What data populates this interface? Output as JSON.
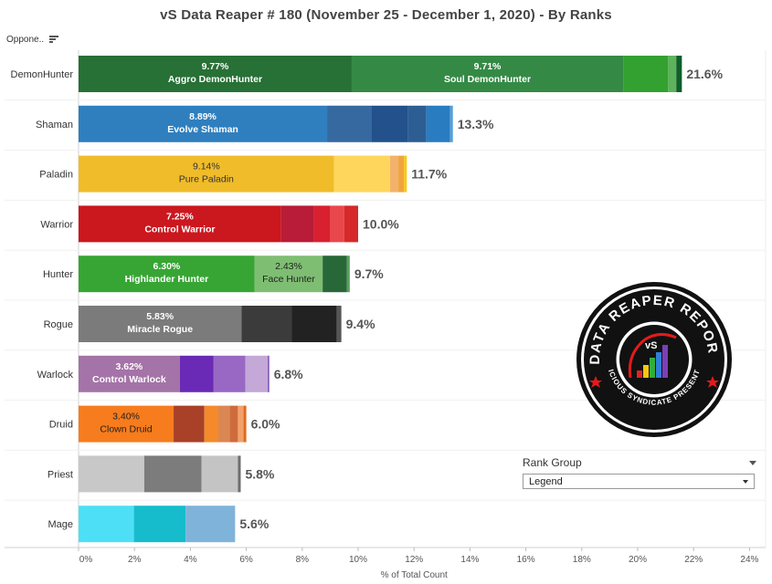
{
  "title": "vS Data Reaper #  180 (November 25 - December 1, 2020) - By Ranks",
  "sort_label": "Oppone..",
  "rank_group": {
    "label": "Rank Group",
    "selected": "Legend"
  },
  "logo": {
    "text_top": "DATA REAPER REPORT",
    "text_bottom": "VICIOUS SYNDICATE PRESENTS",
    "mark": "vS"
  },
  "chart_data": {
    "type": "bar",
    "orientation": "horizontal",
    "stacked": true,
    "xlabel": "% of Total Count",
    "xlim": [
      0,
      24
    ],
    "xticks": [
      "0%",
      "2%",
      "4%",
      "6%",
      "8%",
      "10%",
      "12%",
      "14%",
      "16%",
      "18%",
      "20%",
      "22%",
      "24%"
    ],
    "categories": [
      {
        "name": "DemonHunter",
        "total": 21.6,
        "total_label": "21.6%",
        "segments": [
          {
            "value": 9.77,
            "color": "#277036",
            "label": "Aggro DemonHunter",
            "value_label": "9.77%",
            "text_color": "#ffffff"
          },
          {
            "value": 9.71,
            "color": "#348a45",
            "label": "Soul DemonHunter",
            "value_label": "9.71%",
            "text_color": "#ffffff"
          },
          {
            "value": 1.6,
            "color": "#33a130"
          },
          {
            "value": 0.3,
            "color": "#5db35c"
          },
          {
            "value": 0.2,
            "color": "#0f5e2a"
          }
        ]
      },
      {
        "name": "Shaman",
        "total": 13.3,
        "total_label": "13.3%",
        "segments": [
          {
            "value": 8.89,
            "color": "#2f7fbf",
            "label": "Evolve Shaman",
            "value_label": "8.89%",
            "text_color": "#ffffff"
          },
          {
            "value": 1.6,
            "color": "#3569a0"
          },
          {
            "value": 1.3,
            "color": "#23518c"
          },
          {
            "value": 0.65,
            "color": "#2d5e93"
          },
          {
            "value": 0.85,
            "color": "#2a7cc1"
          },
          {
            "value": 0.1,
            "color": "#5aa0d6"
          }
        ]
      },
      {
        "name": "Paladin",
        "total": 11.7,
        "total_label": "11.7%",
        "segments": [
          {
            "value": 9.14,
            "color": "#f0bc2a",
            "label": "Pure Paladin",
            "value_label": "9.14%",
            "text_color": "#333333"
          },
          {
            "value": 2.0,
            "color": "#fdd65b"
          },
          {
            "value": 0.3,
            "color": "#f3b26b"
          },
          {
            "value": 0.2,
            "color": "#f2a43c"
          },
          {
            "value": 0.1,
            "color": "#f6c814"
          }
        ]
      },
      {
        "name": "Warrior",
        "total": 10.0,
        "total_label": "10.0%",
        "segments": [
          {
            "value": 7.25,
            "color": "#cb171e",
            "label": "Control Warrior",
            "value_label": "7.25%",
            "text_color": "#ffffff"
          },
          {
            "value": 1.15,
            "color": "#b81c38"
          },
          {
            "value": 0.6,
            "color": "#d92030"
          },
          {
            "value": 0.5,
            "color": "#e8474c"
          },
          {
            "value": 0.5,
            "color": "#d62929"
          }
        ]
      },
      {
        "name": "Hunter",
        "total": 9.7,
        "total_label": "9.7%",
        "segments": [
          {
            "value": 6.3,
            "color": "#37a534",
            "label": "Highlander Hunter",
            "value_label": "6.30%",
            "text_color": "#ffffff"
          },
          {
            "value": 2.43,
            "color": "#7ebe72",
            "label": "Face Hunter",
            "value_label": "2.43%",
            "text_color": "#222222"
          },
          {
            "value": 0.87,
            "color": "#286838"
          },
          {
            "value": 0.1,
            "color": "#5a9e60"
          }
        ]
      },
      {
        "name": "Rogue",
        "total": 9.4,
        "total_label": "9.4%",
        "segments": [
          {
            "value": 5.83,
            "color": "#7b7b7b",
            "label": "Miracle Rogue",
            "value_label": "5.83%",
            "text_color": "#ffffff"
          },
          {
            "value": 1.8,
            "color": "#3b3b3b"
          },
          {
            "value": 1.6,
            "color": "#222222"
          },
          {
            "value": 0.17,
            "color": "#555555"
          }
        ]
      },
      {
        "name": "Warlock",
        "total": 6.8,
        "total_label": "6.8%",
        "segments": [
          {
            "value": 3.62,
            "color": "#a473a7",
            "label": "Control Warlock",
            "value_label": "3.62%",
            "text_color": "#ffffff"
          },
          {
            "value": 1.2,
            "color": "#6a2ab5"
          },
          {
            "value": 1.15,
            "color": "#9868c4"
          },
          {
            "value": 0.8,
            "color": "#c3a8d8"
          },
          {
            "value": 0.05,
            "color": "#7a4ab0"
          }
        ]
      },
      {
        "name": "Druid",
        "total": 6.0,
        "total_label": "6.0%",
        "segments": [
          {
            "value": 3.4,
            "color": "#f77c1d",
            "label": "Clown Druid",
            "value_label": "3.40%",
            "text_color": "#222222"
          },
          {
            "value": 1.1,
            "color": "#a84128"
          },
          {
            "value": 0.5,
            "color": "#f58a2a"
          },
          {
            "value": 0.4,
            "color": "#da8753"
          },
          {
            "value": 0.3,
            "color": "#ce6b3c"
          },
          {
            "value": 0.2,
            "color": "#f3a16b"
          },
          {
            "value": 0.1,
            "color": "#e06a1f"
          }
        ]
      },
      {
        "name": "Priest",
        "total": 5.8,
        "total_label": "5.8%",
        "segments": [
          {
            "value": 2.35,
            "color": "#c8c8c8"
          },
          {
            "value": 2.05,
            "color": "#7c7c7c"
          },
          {
            "value": 1.3,
            "color": "#c4c4c4"
          },
          {
            "value": 0.1,
            "color": "#6e6e6e"
          }
        ]
      },
      {
        "name": "Mage",
        "total": 5.6,
        "total_label": "5.6%",
        "segments": [
          {
            "value": 1.98,
            "color": "#4ddff5"
          },
          {
            "value": 1.85,
            "color": "#17bccc"
          },
          {
            "value": 1.77,
            "color": "#80b3da"
          }
        ]
      }
    ]
  }
}
